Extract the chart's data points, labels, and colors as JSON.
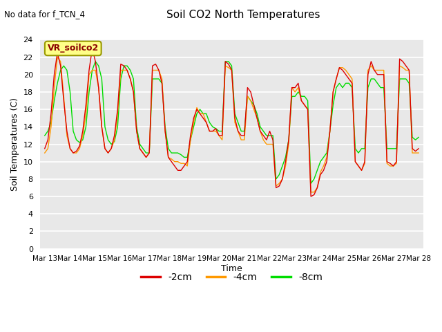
{
  "title": "Soil CO2 North Temperatures",
  "no_data_label": "No data for f_TCN_4",
  "ylabel": "Soil Temperatures (C)",
  "xlabel": "Time",
  "legend_label": "VR_soilco2",
  "ylim": [
    0,
    24
  ],
  "yticks": [
    0,
    2,
    4,
    6,
    8,
    10,
    12,
    14,
    16,
    18,
    20,
    22,
    24
  ],
  "fig_bg": "#ffffff",
  "plot_bg": "#e8e8e8",
  "line_colors": {
    "-2cm": "#dd0000",
    "-4cm": "#ff9900",
    "-8cm": "#00dd00"
  },
  "x_labels": [
    "Mar 13",
    "Mar 14",
    "Mar 15",
    "Mar 16",
    "Mar 17",
    "Mar 18",
    "Mar 19",
    "Mar 20",
    "Mar 21",
    "Mar 22",
    "Mar 23",
    "Mar 24",
    "Mar 25",
    "Mar 26",
    "Mar 27",
    "Mar 28"
  ],
  "series_2cm": [
    11.5,
    12.5,
    15.5,
    20.0,
    22.5,
    21.0,
    17.0,
    13.5,
    11.5,
    11.0,
    11.2,
    11.8,
    13.5,
    16.5,
    20.5,
    23.0,
    21.5,
    18.5,
    14.0,
    11.5,
    11.0,
    11.5,
    13.0,
    16.0,
    21.2,
    21.0,
    20.5,
    19.5,
    18.0,
    13.5,
    11.5,
    11.0,
    10.5,
    11.0,
    21.0,
    21.2,
    20.5,
    19.0,
    13.5,
    10.5,
    10.0,
    9.5,
    9.0,
    9.0,
    9.5,
    10.0,
    13.0,
    15.0,
    16.0,
    15.5,
    15.0,
    14.5,
    13.5,
    13.5,
    13.8,
    13.0,
    13.0,
    21.5,
    21.2,
    20.5,
    15.0,
    13.5,
    13.0,
    13.0,
    18.5,
    18.0,
    16.5,
    15.0,
    13.5,
    13.0,
    12.5,
    13.5,
    12.5,
    7.0,
    7.2,
    8.0,
    10.0,
    12.5,
    18.5,
    18.5,
    19.0,
    17.0,
    16.5,
    16.0,
    6.0,
    6.2,
    7.0,
    8.5,
    9.0,
    10.0,
    13.5,
    18.0,
    19.5,
    20.8,
    20.5,
    20.0,
    19.5,
    19.0,
    10.0,
    9.5,
    9.0,
    10.0,
    20.0,
    21.5,
    20.5,
    20.0,
    20.0,
    20.0,
    10.0,
    9.8,
    9.5,
    10.0,
    21.8,
    21.5,
    21.0,
    20.5,
    11.5,
    11.2,
    11.5
  ],
  "series_4cm": [
    11.0,
    11.5,
    14.0,
    18.5,
    22.0,
    21.5,
    17.5,
    13.0,
    11.5,
    11.0,
    11.0,
    11.5,
    13.0,
    15.5,
    20.0,
    20.5,
    20.5,
    18.5,
    14.0,
    11.5,
    11.0,
    11.5,
    12.5,
    15.5,
    20.5,
    20.5,
    20.5,
    19.5,
    18.0,
    13.5,
    11.5,
    11.0,
    10.5,
    11.0,
    20.5,
    20.5,
    20.5,
    19.5,
    13.5,
    10.5,
    10.3,
    10.0,
    10.0,
    9.8,
    9.8,
    9.5,
    12.5,
    14.5,
    16.2,
    15.5,
    15.5,
    14.5,
    13.5,
    13.5,
    13.5,
    13.0,
    12.5,
    21.0,
    20.8,
    20.5,
    14.5,
    13.5,
    12.5,
    12.5,
    17.5,
    17.0,
    16.0,
    15.0,
    13.5,
    12.5,
    12.0,
    12.0,
    12.0,
    7.2,
    7.5,
    8.0,
    9.5,
    12.0,
    18.5,
    18.0,
    18.5,
    17.0,
    16.5,
    16.0,
    6.5,
    6.5,
    7.0,
    8.8,
    9.5,
    10.5,
    13.5,
    18.0,
    19.5,
    20.8,
    20.8,
    20.5,
    20.0,
    19.5,
    10.0,
    9.5,
    9.0,
    9.8,
    20.5,
    21.0,
    20.5,
    20.5,
    20.5,
    20.5,
    9.8,
    9.5,
    9.5,
    9.8,
    21.0,
    20.8,
    20.5,
    20.5,
    11.0,
    11.0,
    11.0
  ],
  "series_8cm": [
    13.0,
    13.5,
    14.5,
    17.0,
    19.0,
    20.5,
    21.0,
    20.5,
    18.0,
    13.5,
    12.5,
    12.2,
    12.5,
    14.0,
    18.0,
    20.5,
    21.5,
    21.0,
    19.5,
    14.0,
    12.5,
    12.0,
    12.3,
    14.0,
    19.5,
    21.0,
    21.0,
    20.5,
    19.5,
    14.0,
    12.0,
    11.5,
    11.0,
    11.0,
    19.5,
    19.5,
    19.5,
    19.0,
    14.0,
    11.5,
    11.0,
    11.0,
    11.0,
    10.8,
    10.5,
    10.5,
    12.5,
    14.0,
    15.5,
    16.0,
    15.5,
    15.5,
    14.5,
    14.0,
    13.8,
    13.5,
    13.5,
    21.5,
    21.5,
    21.0,
    15.5,
    14.5,
    13.5,
    13.5,
    17.5,
    17.0,
    16.5,
    15.5,
    14.0,
    13.5,
    13.0,
    13.0,
    13.0,
    8.0,
    8.5,
    9.5,
    10.5,
    12.5,
    17.5,
    17.5,
    18.0,
    17.5,
    17.5,
    17.0,
    7.5,
    8.0,
    9.0,
    10.0,
    10.5,
    11.0,
    13.5,
    16.5,
    18.5,
    19.0,
    18.5,
    19.0,
    19.0,
    18.5,
    11.5,
    11.0,
    11.5,
    11.5,
    18.5,
    19.5,
    19.5,
    19.0,
    18.5,
    18.5,
    11.5,
    11.5,
    11.5,
    11.5,
    19.5,
    19.5,
    19.5,
    19.0,
    12.8,
    12.5,
    12.8
  ]
}
